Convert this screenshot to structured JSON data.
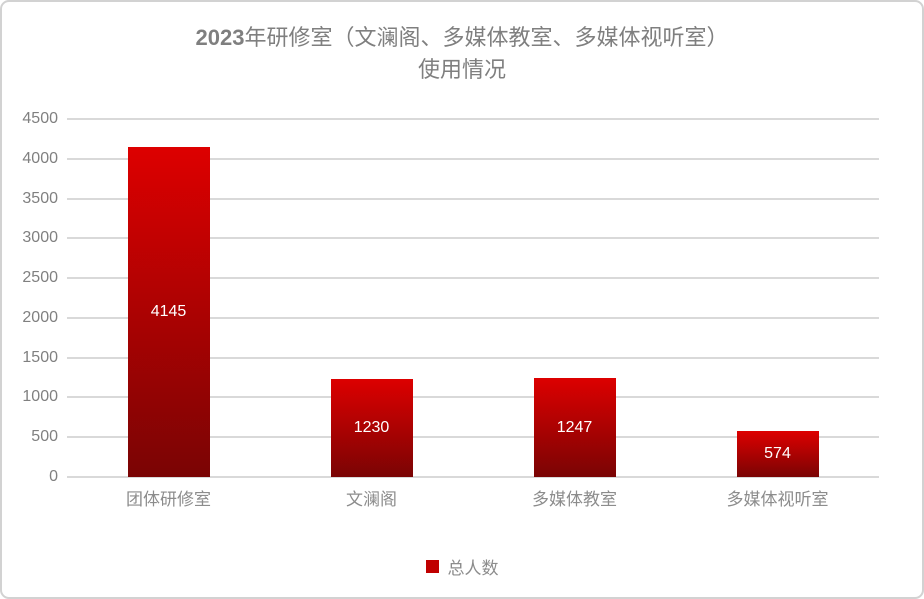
{
  "title": {
    "prefix": "2023",
    "line1_rest": "年研修室（文澜阁、多媒体教室、多媒体视听室）",
    "line2": "使用情况",
    "color": "#7f7f7f"
  },
  "legend": {
    "label": "总人数",
    "marker_color": "#c00000",
    "position": "bottom"
  },
  "colors": {
    "bar_gradient_top": "#dd0000",
    "bar_gradient_bottom": "#7a0404",
    "gridline": "#d9d9d9",
    "axis_text": "#808080",
    "data_label": "#ffffff",
    "frame_border": "#d2d2d2"
  },
  "chart_data": {
    "type": "bar",
    "title": "2023年研修室（文澜阁、多媒体教室、多媒体视听室）使用情况",
    "categories": [
      "团体研修室",
      "文澜阁",
      "多媒体教室",
      "多媒体视听室"
    ],
    "series": [
      {
        "name": "总人数",
        "values": [
          4145,
          1230,
          1247,
          574
        ]
      }
    ],
    "data_labels": [
      "4145",
      "1230",
      "1247",
      "574"
    ],
    "xlabel": "",
    "ylabel": "",
    "ylim": [
      0,
      4500
    ],
    "yticks": [
      0,
      500,
      1000,
      1500,
      2000,
      2500,
      3000,
      3500,
      4000,
      4500
    ],
    "grid": true,
    "legend_position": "bottom"
  }
}
